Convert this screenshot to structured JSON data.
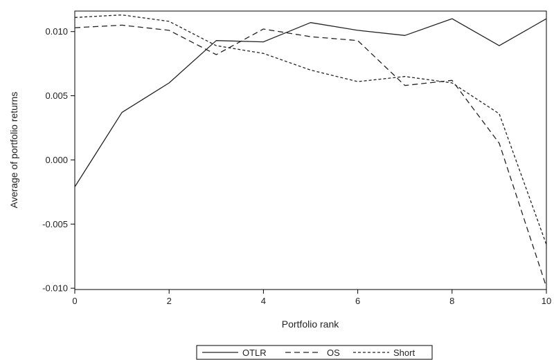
{
  "chart_data": {
    "type": "line",
    "title": "",
    "xlabel": "Portfolio rank",
    "ylabel": "Average of portfolio returns",
    "xlim": [
      0,
      10
    ],
    "ylim": [
      -0.0101,
      0.0116
    ],
    "xticks": [
      0,
      2,
      4,
      6,
      8,
      10
    ],
    "xtick_labels": [
      "0",
      "2",
      "4",
      "6",
      "8",
      "10"
    ],
    "yticks": [
      -0.01,
      -0.005,
      0.0,
      0.005,
      0.01
    ],
    "ytick_labels": [
      "-0.010",
      "-0.005",
      "0.000",
      "0.005",
      "0.010"
    ],
    "grid": false,
    "legend_position": "bottom-center",
    "x": [
      0,
      1,
      2,
      3,
      4,
      5,
      6,
      7,
      8,
      9,
      10
    ],
    "series": [
      {
        "name": "OTLR",
        "dash": "solid",
        "values": [
          -0.0021,
          0.0037,
          0.006,
          0.0093,
          0.0092,
          0.0107,
          0.0101,
          0.0097,
          0.011,
          0.0089,
          0.011
        ]
      },
      {
        "name": "OS",
        "dash": "dashed",
        "values": [
          0.0103,
          0.0105,
          0.0101,
          0.0082,
          0.0102,
          0.0096,
          0.0093,
          0.0058,
          0.0062,
          0.0013,
          -0.0099
        ]
      },
      {
        "name": "Short",
        "dash": "short-dashed",
        "values": [
          0.0111,
          0.0113,
          0.0108,
          0.0089,
          0.0083,
          0.007,
          0.0061,
          0.0065,
          0.006,
          0.0036,
          -0.0066
        ]
      }
    ]
  }
}
